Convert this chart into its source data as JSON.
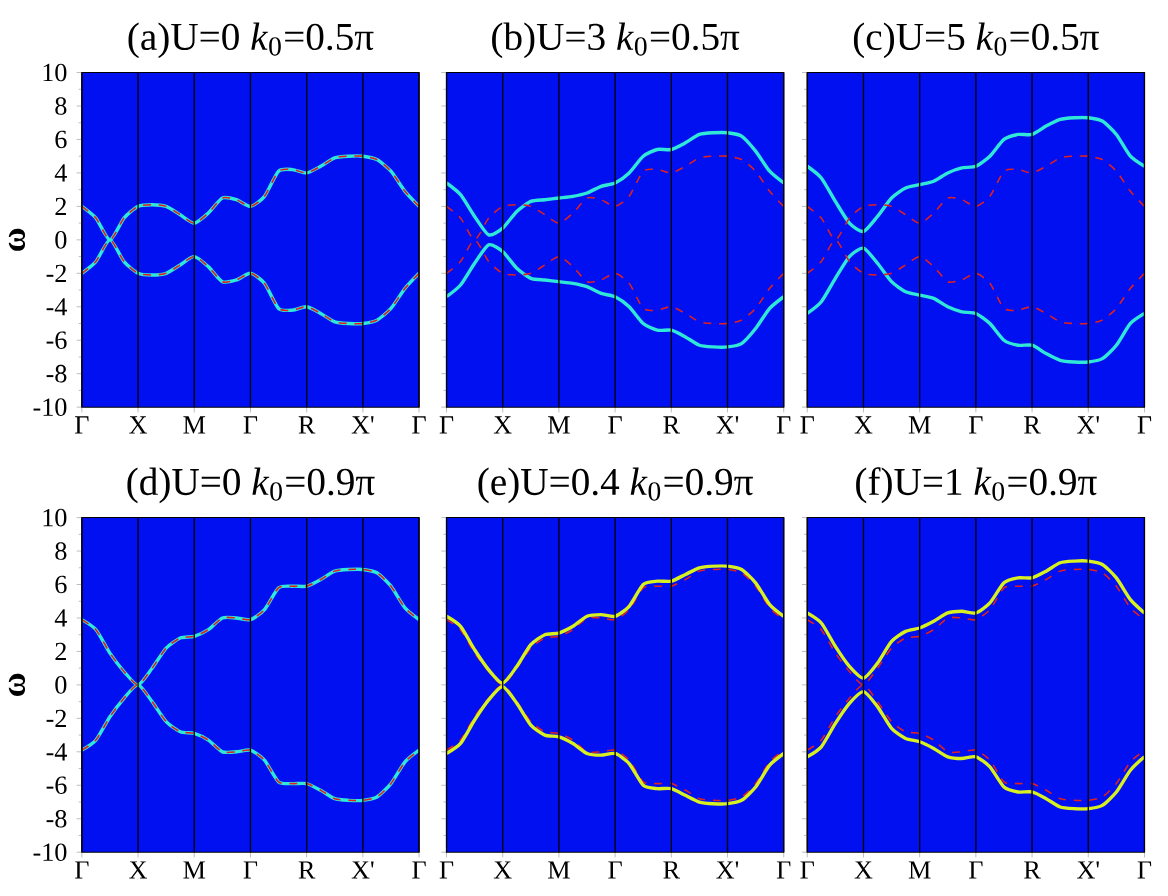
{
  "chart_data": [
    {
      "type": "line",
      "title": "(a)U=0 *k*$_{0}$=0.5π",
      "ylabel": "ω",
      "grid": "x",
      "categories": [
        "Γ",
        null,
        null,
        null,
        "X",
        null,
        null,
        null,
        "M",
        null,
        null,
        null,
        "Γ",
        null,
        null,
        null,
        "R",
        null,
        null,
        null,
        "X'",
        null,
        null,
        null,
        "Γ"
      ],
      "ylim": [
        -10,
        10
      ],
      "yticks": [
        -10,
        -8,
        -6,
        -4,
        -2,
        0,
        2,
        4,
        6,
        8,
        10
      ],
      "series": [
        {
          "color": "#30e8d8",
          "line_style": "solid",
          "values": [
            2,
            1.3,
            0,
            1.3,
            2,
            2.1,
            2.0,
            1.5,
            1,
            1.6,
            2.5,
            2.4,
            2,
            2.6,
            4.1,
            4.2,
            4.0,
            4.4,
            4.9,
            5,
            5,
            4.8,
            4.1,
            2.9,
            2
          ]
        },
        {
          "color": "#30e8d8",
          "line_style": "solid",
          "values": [
            -2,
            -1.3,
            0,
            -1.3,
            -2,
            -2.1,
            -2.0,
            -1.5,
            -1,
            -1.6,
            -2.5,
            -2.4,
            -2,
            -2.6,
            -4.1,
            -4.2,
            -4.0,
            -4.4,
            -4.9,
            -5,
            -5,
            -4.8,
            -4.1,
            -2.9,
            -2
          ]
        },
        {
          "color": "#e02020",
          "line_style": "dashed",
          "values": [
            2,
            1.3,
            0,
            1.3,
            2,
            2.1,
            2.0,
            1.5,
            1,
            1.6,
            2.5,
            2.4,
            2,
            2.6,
            4.1,
            4.2,
            4.0,
            4.4,
            4.9,
            5,
            5,
            4.8,
            4.1,
            2.9,
            2
          ]
        },
        {
          "color": "#e02020",
          "line_style": "dashed",
          "values": [
            -2,
            -1.3,
            0,
            -1.3,
            -2,
            -2.1,
            -2.0,
            -1.5,
            -1,
            -1.6,
            -2.5,
            -2.4,
            -2,
            -2.6,
            -4.1,
            -4.2,
            -4.0,
            -4.4,
            -4.9,
            -5,
            -5,
            -4.8,
            -4.1,
            -2.9,
            -2
          ]
        }
      ]
    },
    {
      "type": "line",
      "title": "(b)U=3 *k*$_{0}$=0.5π",
      "tick_labels": "x",
      "grid": "x",
      "categories": [
        "Γ",
        null,
        null,
        null,
        "X",
        null,
        null,
        null,
        "M",
        null,
        null,
        null,
        "Γ",
        null,
        null,
        null,
        "R",
        null,
        null,
        null,
        "X'",
        null,
        null,
        null,
        "Γ"
      ],
      "ylim": [
        -10,
        10
      ],
      "yticks": [
        -10,
        -8,
        -6,
        -4,
        -2,
        0,
        2,
        4,
        6,
        8,
        10
      ],
      "series": [
        {
          "color": "#30e8d8",
          "line_style": "solid",
          "values": [
            3.4,
            2.7,
            1.4,
            0.3,
            0.7,
            1.7,
            2.3,
            2.4,
            2.5,
            2.6,
            2.8,
            3.2,
            3.4,
            4.0,
            5.0,
            5.4,
            5.4,
            5.8,
            6.3,
            6.4,
            6.4,
            6.2,
            5.3,
            4.1,
            3.4
          ]
        },
        {
          "color": "#30e8d8",
          "line_style": "solid",
          "values": [
            -3.4,
            -2.7,
            -1.4,
            -0.3,
            -0.7,
            -1.7,
            -2.3,
            -2.4,
            -2.5,
            -2.6,
            -2.8,
            -3.2,
            -3.4,
            -4.0,
            -5.0,
            -5.4,
            -5.4,
            -5.8,
            -6.3,
            -6.4,
            -6.4,
            -6.2,
            -5.3,
            -4.1,
            -3.4
          ]
        },
        {
          "color": "#e02020",
          "line_style": "dashed",
          "values": [
            2,
            1.3,
            0,
            1.3,
            2,
            2.1,
            2.0,
            1.5,
            1,
            1.6,
            2.5,
            2.4,
            2,
            2.6,
            4.1,
            4.2,
            4.0,
            4.4,
            4.9,
            5,
            5,
            4.8,
            4.1,
            2.9,
            2
          ]
        },
        {
          "color": "#e02020",
          "line_style": "dashed",
          "values": [
            -2,
            -1.3,
            0,
            -1.3,
            -2,
            -2.1,
            -2.0,
            -1.5,
            -1,
            -1.6,
            -2.5,
            -2.4,
            -2,
            -2.6,
            -4.1,
            -4.2,
            -4.0,
            -4.4,
            -4.9,
            -5,
            -5,
            -4.8,
            -4.1,
            -2.9,
            -2
          ]
        }
      ]
    },
    {
      "type": "line",
      "title": "(c)U=5 *k*$_{0}$=0.5π",
      "tick_labels": "x",
      "grid": "x",
      "categories": [
        "Γ",
        null,
        null,
        null,
        "X",
        null,
        null,
        null,
        "M",
        null,
        null,
        null,
        "Γ",
        null,
        null,
        null,
        "R",
        null,
        null,
        null,
        "X'",
        null,
        null,
        null,
        "Γ"
      ],
      "ylim": [
        -10,
        10
      ],
      "yticks": [
        -10,
        -8,
        -6,
        -4,
        -2,
        0,
        2,
        4,
        6,
        8,
        10
      ],
      "series": [
        {
          "color": "#30e8d8",
          "line_style": "solid",
          "values": [
            4.4,
            3.7,
            2.3,
            1.0,
            0.5,
            1.4,
            2.5,
            3.1,
            3.3,
            3.5,
            4.0,
            4.3,
            4.4,
            5.0,
            6.0,
            6.3,
            6.3,
            6.8,
            7.2,
            7.3,
            7.3,
            7.1,
            6.3,
            5.0,
            4.4
          ]
        },
        {
          "color": "#30e8d8",
          "line_style": "solid",
          "values": [
            -4.4,
            -3.7,
            -2.3,
            -1.0,
            -0.5,
            -1.4,
            -2.5,
            -3.1,
            -3.3,
            -3.5,
            -4.0,
            -4.3,
            -4.4,
            -5.0,
            -6.0,
            -6.3,
            -6.3,
            -6.8,
            -7.2,
            -7.3,
            -7.3,
            -7.1,
            -6.3,
            -5.0,
            -4.4
          ]
        },
        {
          "color": "#e02020",
          "line_style": "dashed",
          "values": [
            2,
            1.3,
            0,
            1.3,
            2,
            2.1,
            2.0,
            1.5,
            1,
            1.6,
            2.5,
            2.4,
            2,
            2.6,
            4.1,
            4.2,
            4.0,
            4.4,
            4.9,
            5,
            5,
            4.8,
            4.1,
            2.9,
            2
          ]
        },
        {
          "color": "#e02020",
          "line_style": "dashed",
          "values": [
            -2,
            -1.3,
            0,
            -1.3,
            -2,
            -2.1,
            -2.0,
            -1.5,
            -1,
            -1.6,
            -2.5,
            -2.4,
            -2,
            -2.6,
            -4.1,
            -4.2,
            -4.0,
            -4.4,
            -4.9,
            -5,
            -5,
            -4.8,
            -4.1,
            -2.9,
            -2
          ]
        }
      ]
    },
    {
      "type": "line",
      "title": "(d)U=0 *k*$_{0}$=0.9π",
      "ylabel": "ω",
      "grid": "x",
      "categories": [
        "Γ",
        null,
        null,
        null,
        "X",
        null,
        null,
        null,
        "M",
        null,
        null,
        null,
        "Γ",
        null,
        null,
        null,
        "R",
        null,
        null,
        null,
        "X'",
        null,
        null,
        null,
        "Γ"
      ],
      "ylim": [
        -10,
        10
      ],
      "yticks": [
        -10,
        -8,
        -6,
        -4,
        -2,
        0,
        2,
        4,
        6,
        8,
        10
      ],
      "series": [
        {
          "color": "#30e8d8",
          "line_style": "solid",
          "values": [
            3.9,
            3.3,
            1.9,
            0.8,
            0,
            1.0,
            2.2,
            2.8,
            2.9,
            3.3,
            4.0,
            4.0,
            3.9,
            4.5,
            5.8,
            5.9,
            5.9,
            6.3,
            6.8,
            6.9,
            6.9,
            6.7,
            5.9,
            4.6,
            3.9
          ]
        },
        {
          "color": "#30e8d8",
          "line_style": "solid",
          "values": [
            -3.9,
            -3.3,
            -1.9,
            -0.8,
            0,
            -1.0,
            -2.2,
            -2.8,
            -2.9,
            -3.3,
            -4.0,
            -4.0,
            -3.9,
            -4.5,
            -5.8,
            -5.9,
            -5.9,
            -6.3,
            -6.8,
            -6.9,
            -6.9,
            -6.7,
            -5.9,
            -4.6,
            -3.9
          ]
        },
        {
          "color": "#e02020",
          "line_style": "dashed",
          "values": [
            3.9,
            3.3,
            1.9,
            0.8,
            0,
            1.0,
            2.2,
            2.8,
            2.9,
            3.3,
            4.0,
            4.0,
            3.9,
            4.5,
            5.8,
            5.9,
            5.9,
            6.3,
            6.8,
            6.9,
            6.9,
            6.7,
            5.9,
            4.6,
            3.9
          ]
        },
        {
          "color": "#e02020",
          "line_style": "dashed",
          "values": [
            -3.9,
            -3.3,
            -1.9,
            -0.8,
            0,
            -1.0,
            -2.2,
            -2.8,
            -2.9,
            -3.3,
            -4.0,
            -4.0,
            -3.9,
            -4.5,
            -5.8,
            -5.9,
            -5.9,
            -6.3,
            -6.8,
            -6.9,
            -6.9,
            -6.7,
            -5.9,
            -4.6,
            -3.9
          ]
        }
      ]
    },
    {
      "type": "line",
      "title": "(e)U=0.4 *k*$_{0}$=0.9π",
      "tick_labels": "x",
      "grid": "x",
      "categories": [
        "Γ",
        null,
        null,
        null,
        "X",
        null,
        null,
        null,
        "M",
        null,
        null,
        null,
        "Γ",
        null,
        null,
        null,
        "R",
        null,
        null,
        null,
        "X'",
        null,
        null,
        null,
        "Γ"
      ],
      "ylim": [
        -10,
        10
      ],
      "yticks": [
        -10,
        -8,
        -6,
        -4,
        -2,
        0,
        2,
        4,
        6,
        8,
        10
      ],
      "series": [
        {
          "color": "#e02020",
          "line_style": "dashed",
          "values": [
            3.9,
            3.3,
            1.9,
            0.8,
            0,
            1.0,
            2.2,
            2.8,
            2.9,
            3.3,
            4.0,
            4.0,
            3.9,
            4.5,
            5.8,
            5.9,
            5.9,
            6.3,
            6.8,
            6.9,
            6.9,
            6.7,
            5.9,
            4.6,
            3.9
          ]
        },
        {
          "color": "#e02020",
          "line_style": "dashed",
          "values": [
            -3.9,
            -3.3,
            -1.9,
            -0.8,
            0,
            -1.0,
            -2.2,
            -2.8,
            -2.9,
            -3.3,
            -4.0,
            -4.0,
            -3.9,
            -4.5,
            -5.8,
            -5.9,
            -5.9,
            -6.3,
            -6.8,
            -6.9,
            -6.9,
            -6.7,
            -5.9,
            -4.6,
            -3.9
          ]
        },
        {
          "color": "#d8f020",
          "line_style": "solid",
          "values": [
            4.1,
            3.5,
            2.1,
            0.9,
            0.1,
            1.1,
            2.4,
            3.0,
            3.1,
            3.5,
            4.1,
            4.2,
            4.1,
            4.7,
            6.0,
            6.2,
            6.2,
            6.6,
            7.0,
            7.1,
            7.1,
            6.9,
            6.1,
            4.8,
            4.1
          ]
        },
        {
          "color": "#d8f020",
          "line_style": "solid",
          "values": [
            -4.1,
            -3.5,
            -2.1,
            -0.9,
            -0.1,
            -1.1,
            -2.4,
            -3.0,
            -3.1,
            -3.5,
            -4.1,
            -4.2,
            -4.1,
            -4.7,
            -6.0,
            -6.2,
            -6.2,
            -6.6,
            -7.0,
            -7.1,
            -7.1,
            -6.9,
            -6.1,
            -4.8,
            -4.1
          ]
        }
      ]
    },
    {
      "type": "line",
      "title": "(f)U=1 *k*$_{0}$=0.9π",
      "tick_labels": "x",
      "grid": "x",
      "categories": [
        "Γ",
        null,
        null,
        null,
        "X",
        null,
        null,
        null,
        "M",
        null,
        null,
        null,
        "Γ",
        null,
        null,
        null,
        "R",
        null,
        null,
        null,
        "X'",
        null,
        null,
        null,
        "Γ"
      ],
      "ylim": [
        -10,
        10
      ],
      "yticks": [
        -10,
        -8,
        -6,
        -4,
        -2,
        0,
        2,
        4,
        6,
        8,
        10
      ],
      "series": [
        {
          "color": "#d8f020",
          "line_style": "solid",
          "values": [
            4.3,
            3.7,
            2.3,
            1.1,
            0.4,
            1.3,
            2.6,
            3.2,
            3.4,
            3.8,
            4.3,
            4.4,
            4.3,
            4.9,
            6.1,
            6.4,
            6.4,
            6.8,
            7.3,
            7.4,
            7.4,
            7.2,
            6.4,
            5.1,
            4.3
          ]
        },
        {
          "color": "#d8f020",
          "line_style": "solid",
          "values": [
            -4.3,
            -3.7,
            -2.3,
            -1.1,
            -0.4,
            -1.3,
            -2.6,
            -3.2,
            -3.4,
            -3.8,
            -4.3,
            -4.4,
            -4.3,
            -4.9,
            -6.1,
            -6.4,
            -6.4,
            -6.8,
            -7.3,
            -7.4,
            -7.4,
            -7.2,
            -6.4,
            -5.1,
            -4.3
          ]
        },
        {
          "color": "#e02020",
          "line_style": "dashed",
          "values": [
            3.9,
            3.3,
            1.9,
            0.8,
            0,
            1.0,
            2.2,
            2.8,
            2.9,
            3.3,
            4.0,
            4.0,
            3.9,
            4.5,
            5.8,
            5.9,
            5.9,
            6.3,
            6.8,
            6.9,
            6.9,
            6.7,
            5.9,
            4.6,
            3.9
          ]
        },
        {
          "color": "#e02020",
          "line_style": "dashed",
          "values": [
            -3.9,
            -3.3,
            -1.9,
            -0.8,
            0,
            -1.0,
            -2.2,
            -2.8,
            -2.9,
            -3.3,
            -4.0,
            -4.0,
            -3.9,
            -4.5,
            -5.8,
            -5.9,
            -5.9,
            -6.3,
            -6.8,
            -6.9,
            -6.9,
            -6.7,
            -5.9,
            -4.6,
            -3.9
          ]
        }
      ]
    }
  ]
}
